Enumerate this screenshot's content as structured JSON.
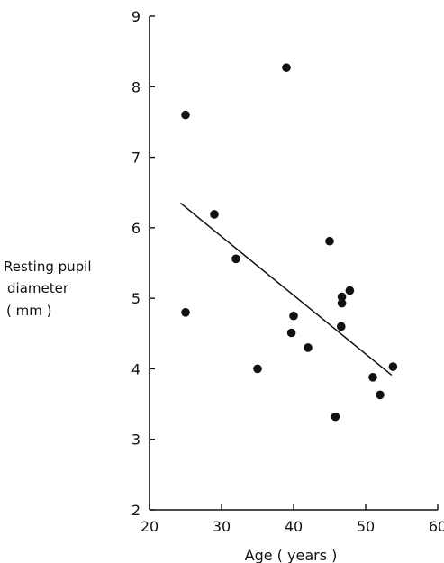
{
  "chart_data": {
    "type": "scatter",
    "title": "",
    "xlabel": "Age ( years )",
    "ylabel_lines": [
      "Resting pupil",
      "diameter",
      "( mm )"
    ],
    "xlim": [
      20,
      60
    ],
    "ylim": [
      2,
      9
    ],
    "x_ticks": [
      20,
      30,
      40,
      50,
      60
    ],
    "y_ticks": [
      2,
      3,
      4,
      5,
      6,
      7,
      8,
      9
    ],
    "grid": false,
    "point_color": "#111111",
    "series": [
      {
        "points": [
          {
            "x": 25.0,
            "y": 7.6
          },
          {
            "x": 39.0,
            "y": 8.27
          },
          {
            "x": 29.0,
            "y": 6.19
          },
          {
            "x": 32.0,
            "y": 5.56
          },
          {
            "x": 25.0,
            "y": 4.8
          },
          {
            "x": 45.0,
            "y": 5.81
          },
          {
            "x": 47.8,
            "y": 5.11
          },
          {
            "x": 46.7,
            "y": 5.02
          },
          {
            "x": 46.7,
            "y": 4.93
          },
          {
            "x": 40.0,
            "y": 4.75
          },
          {
            "x": 46.6,
            "y": 4.6
          },
          {
            "x": 39.7,
            "y": 4.51
          },
          {
            "x": 42.0,
            "y": 4.3
          },
          {
            "x": 35.0,
            "y": 4.0
          },
          {
            "x": 53.8,
            "y": 4.03
          },
          {
            "x": 51.0,
            "y": 3.88
          },
          {
            "x": 52.0,
            "y": 3.63
          },
          {
            "x": 45.8,
            "y": 3.32
          }
        ]
      }
    ],
    "trendline": {
      "x": [
        24.3,
        53.6
      ],
      "y": [
        6.35,
        3.91
      ]
    }
  }
}
